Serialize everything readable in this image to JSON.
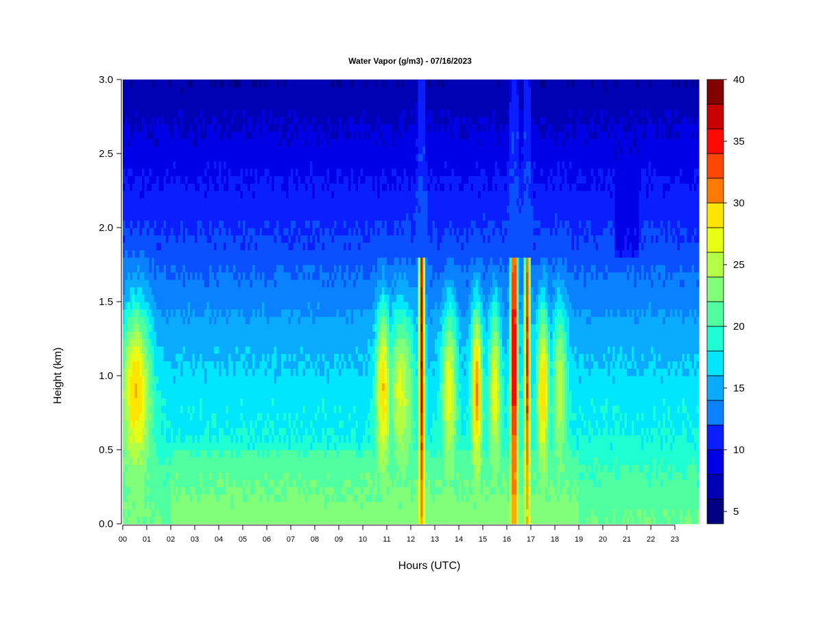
{
  "chart_data": {
    "type": "heatmap",
    "title": "Water Vapor (g/m3) - 07/16/2023",
    "xlabel": "Hours (UTC)",
    "ylabel": "Height (km)",
    "x_ticks": [
      "00",
      "01",
      "02",
      "03",
      "04",
      "05",
      "06",
      "07",
      "08",
      "09",
      "10",
      "11",
      "12",
      "13",
      "14",
      "15",
      "16",
      "17",
      "18",
      "19",
      "20",
      "21",
      "22",
      "23"
    ],
    "y_ticks": [
      "0.0",
      "0.5",
      "1.0",
      "1.5",
      "2.0",
      "2.5",
      "3.0"
    ],
    "xlim": [
      0,
      24
    ],
    "ylim": [
      0,
      3.0
    ],
    "colorbar": {
      "ticks": [
        "5",
        "10",
        "15",
        "20",
        "25",
        "30",
        "35",
        "40"
      ],
      "range": [
        4,
        40
      ],
      "levels": 18,
      "colors": [
        "#000080",
        "#0000b4",
        "#0000e6",
        "#0a1eff",
        "#0a50ff",
        "#0a82ff",
        "#0aaaff",
        "#00e6ff",
        "#1effd2",
        "#50ffa0",
        "#82ff78",
        "#b4ff46",
        "#e6ff14",
        "#ffe600",
        "#ffaa00",
        "#ff7800",
        "#ff4600",
        "#ff0a00",
        "#c80000",
        "#820000"
      ]
    },
    "profile_heights_km": [
      0.0,
      0.1,
      0.2,
      0.3,
      0.4,
      0.5,
      0.6,
      0.7,
      0.8,
      0.9,
      1.0,
      1.1,
      1.2,
      1.3,
      1.4,
      1.5,
      1.6,
      1.7,
      1.8,
      1.9,
      2.0,
      2.2,
      2.4,
      2.6,
      2.8,
      3.0
    ],
    "base_profile_gm3": [
      22,
      21.5,
      21,
      20.5,
      20,
      19,
      18.5,
      18,
      18,
      17.5,
      17,
      16.5,
      16,
      15.5,
      15,
      14,
      13.5,
      13,
      12,
      11.5,
      11,
      10,
      9,
      8,
      7,
      6
    ],
    "moist_bands_utc": [
      {
        "center": 0.55,
        "width": 0.6,
        "peak": 29
      },
      {
        "center": 10.85,
        "width": 0.3,
        "peak": 29
      },
      {
        "center": 11.6,
        "width": 0.5,
        "peak": 26
      },
      {
        "center": 12.45,
        "width": 0.12,
        "peak": 38
      },
      {
        "center": 13.6,
        "width": 0.3,
        "peak": 27
      },
      {
        "center": 14.75,
        "width": 0.22,
        "peak": 31
      },
      {
        "center": 15.5,
        "width": 0.25,
        "peak": 27
      },
      {
        "center": 16.3,
        "width": 0.14,
        "peak": 38
      },
      {
        "center": 16.85,
        "width": 0.12,
        "peak": 35
      },
      {
        "center": 17.5,
        "width": 0.25,
        "peak": 29
      },
      {
        "center": 18.2,
        "width": 0.3,
        "peak": 25
      }
    ],
    "dry_upper_periods_utc": [
      {
        "start": 10.0,
        "end": 18.5,
        "value": 10
      },
      {
        "start": 20.5,
        "end": 21.5,
        "value": 7
      }
    ]
  }
}
